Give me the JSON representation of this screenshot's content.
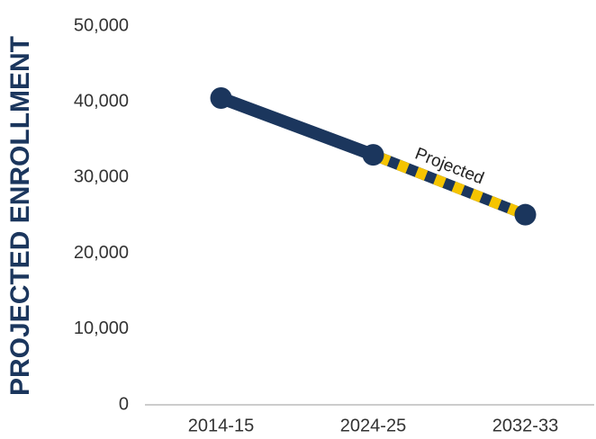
{
  "chart_data": {
    "type": "line",
    "y_axis_label": "PROJECTED ENROLLMENT",
    "categories": [
      "2014-15",
      "2024-25",
      "2032-33"
    ],
    "values": [
      40500,
      33000,
      25100
    ],
    "color": "#1b365d",
    "projected_color": "#f5c400",
    "dashed_from": 1,
    "annotation": "Projected",
    "ylim": [
      0,
      50000
    ],
    "yticks": [
      {
        "value": 0,
        "label": "0"
      },
      {
        "value": 10000,
        "label": "10,000"
      },
      {
        "value": 20000,
        "label": "20,000"
      },
      {
        "value": 30000,
        "label": "30,000"
      },
      {
        "value": 40000,
        "label": "40,000"
      },
      {
        "value": 50000,
        "label": "50,000"
      }
    ],
    "grid": false
  }
}
